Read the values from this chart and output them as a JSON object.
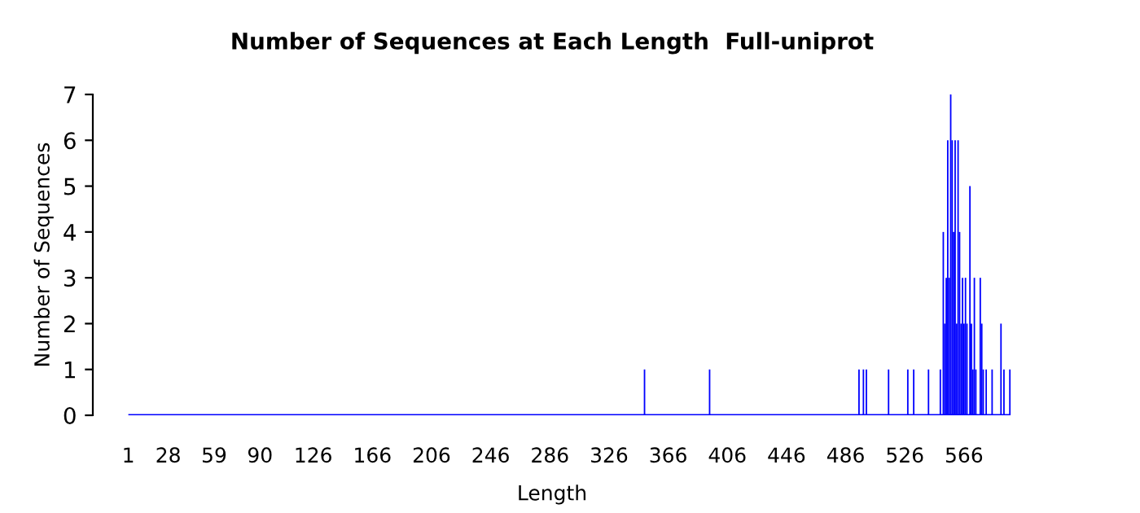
{
  "chart_data": {
    "type": "bar",
    "title": "Number of Sequences at Each Length  Full-uniprot",
    "xlabel": "Length",
    "ylabel": "Number of Sequences",
    "color": "#0000ff",
    "x": [
      350,
      394,
      495,
      498,
      500,
      515,
      528,
      532,
      542,
      550,
      552,
      553,
      554,
      555,
      556,
      557,
      558,
      559,
      560,
      561,
      562,
      563,
      564,
      565,
      566,
      567,
      568,
      570,
      571,
      572,
      573,
      574,
      577,
      578,
      579,
      581,
      585,
      591,
      593,
      597
    ],
    "values": [
      1,
      1,
      1,
      1,
      1,
      1,
      1,
      1,
      1,
      1,
      4,
      2,
      3,
      6,
      3,
      7,
      6,
      4,
      6,
      2,
      6,
      4,
      2,
      3,
      2,
      3,
      2,
      5,
      2,
      1,
      3,
      1,
      3,
      2,
      1,
      1,
      1,
      2,
      1,
      1
    ],
    "xlim": [
      -23,
      598
    ],
    "xticks": [
      1,
      28,
      59,
      90,
      126,
      166,
      206,
      246,
      286,
      326,
      366,
      406,
      446,
      486,
      526,
      566
    ],
    "ylim": [
      0,
      7
    ],
    "yticks": [
      0,
      1,
      2,
      3,
      4,
      5,
      6,
      7
    ],
    "grid": false
  }
}
